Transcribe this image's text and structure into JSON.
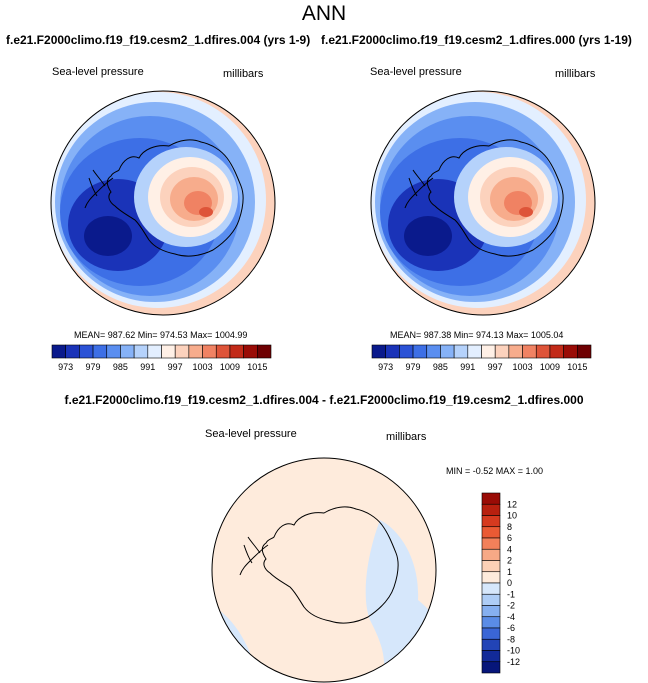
{
  "figure": {
    "title": "ANN",
    "colors": {
      "land": "#f7b79c",
      "background": "#ffffff",
      "coast": "#000000"
    }
  },
  "chart_data": [
    {
      "type": "heatmap",
      "title": "f.e21.F2000climo.f19_f19.cesm2_1.dfires.004 (yrs 1-9)",
      "left_label": "Sea-level pressure",
      "right_label": "millibars",
      "projection": "south-polar-stereographic",
      "stats": {
        "text": "MEAN= 987.62  Min= 974.53  Max= 1004.99",
        "mean": 987.62,
        "min": 974.53,
        "max": 1004.99
      },
      "colorbar": {
        "orientation": "horizontal",
        "levels": [
          973,
          976,
          979,
          982,
          985,
          988,
          991,
          994,
          997,
          1000,
          1003,
          1006,
          1009,
          1012,
          1015
        ],
        "tick_labels": [
          "973",
          "979",
          "985",
          "991",
          "997",
          "1003",
          "1009",
          "1015"
        ],
        "colors": [
          "#0a1a8c",
          "#1a33b8",
          "#2b52d6",
          "#3d6fe6",
          "#5a8ef0",
          "#86b2f7",
          "#b5d2fb",
          "#e3efff",
          "#fff0e6",
          "#fcd2bd",
          "#f7ac8c",
          "#f08263",
          "#de5439",
          "#c22a18",
          "#9a0c06",
          "#6e0002"
        ]
      }
    },
    {
      "type": "heatmap",
      "title": "f.e21.F2000climo.f19_f19.cesm2_1.dfires.000 (yrs 1-19)",
      "left_label": "Sea-level pressure",
      "right_label": "millibars",
      "projection": "south-polar-stereographic",
      "stats": {
        "text": "MEAN= 987.38  Min= 974.13  Max= 1005.04",
        "mean": 987.38,
        "min": 974.13,
        "max": 1005.04
      },
      "colorbar": {
        "orientation": "horizontal",
        "levels": [
          973,
          976,
          979,
          982,
          985,
          988,
          991,
          994,
          997,
          1000,
          1003,
          1006,
          1009,
          1012,
          1015
        ],
        "tick_labels": [
          "973",
          "979",
          "985",
          "991",
          "997",
          "1003",
          "1009",
          "1015"
        ],
        "colors": [
          "#0a1a8c",
          "#1a33b8",
          "#2b52d6",
          "#3d6fe6",
          "#5a8ef0",
          "#86b2f7",
          "#b5d2fb",
          "#e3efff",
          "#fff0e6",
          "#fcd2bd",
          "#f7ac8c",
          "#f08263",
          "#de5439",
          "#c22a18",
          "#9a0c06",
          "#6e0002"
        ]
      }
    },
    {
      "type": "heatmap",
      "title": "f.e21.F2000climo.f19_f19.cesm2_1.dfires.004 - f.e21.F2000climo.f19_f19.cesm2_1.dfires.000",
      "left_label": "Sea-level pressure",
      "right_label": "millibars",
      "projection": "south-polar-stereographic",
      "stats": {
        "text": "MIN =  -0.52  MAX =   1.00",
        "min": -0.52,
        "max": 1.0
      },
      "colorbar": {
        "orientation": "vertical",
        "levels": [
          12,
          10,
          8,
          6,
          4,
          2,
          1,
          0,
          -1,
          -2,
          -4,
          -6,
          -8,
          -10,
          -12
        ],
        "tick_labels": [
          "12",
          "10",
          "8",
          "6",
          "4",
          "2",
          "1",
          "0",
          "-1",
          "-2",
          "-4",
          "-6",
          "-8",
          "-10",
          "-12"
        ],
        "colors": [
          "#9a0c06",
          "#b8200f",
          "#d63a1f",
          "#ea5a34",
          "#f2805a",
          "#f7a986",
          "#fcd0b6",
          "#feebdc",
          "#d6e7fb",
          "#aecdf6",
          "#86b0f0",
          "#5a8ce6",
          "#3a66d6",
          "#2244b6",
          "#122a98",
          "#07167a"
        ]
      }
    }
  ]
}
